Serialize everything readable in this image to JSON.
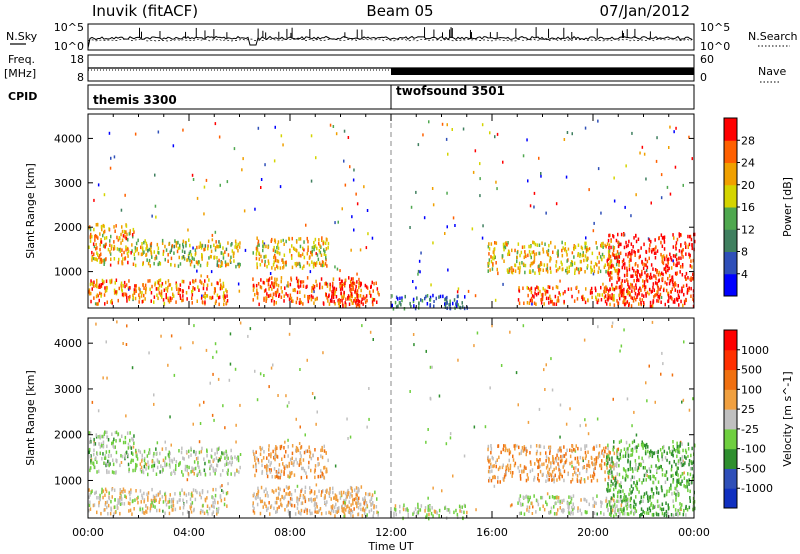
{
  "header": {
    "station": "Inuvik (fitACF)",
    "beam": "Beam 05",
    "date": "07/Jan/2012"
  },
  "left_labels": {
    "nsky": "N.Sky",
    "freq": "Freq.",
    "freq_unit": "[MHz]",
    "cpid": "CPID"
  },
  "right_labels": {
    "nsearch": "N.Search",
    "nave": "Nave"
  },
  "panel_ticks": {
    "nsky_left": [
      "10^5",
      "10^0"
    ],
    "nsky_right": [
      "10^5",
      "10^0"
    ],
    "freq_left": [
      "18",
      "8"
    ],
    "nave_right": [
      "60",
      "0"
    ]
  },
  "cpid_segments": [
    {
      "label": "themis 3300",
      "start_hour": 0
    },
    {
      "label": "twofsound 3501",
      "start_hour": 12
    }
  ],
  "colors": {
    "power_scale": [
      "#0000ff",
      "#2f4fb8",
      "#3f7f5f",
      "#4fa84f",
      "#d4d400",
      "#f0a000",
      "#ff6000",
      "#ff0000"
    ],
    "velocity_scale": [
      "#1030c0",
      "#2f4fb8",
      "#2f8f2f",
      "#6fcf3f",
      "#c0c0c0",
      "#f0a040",
      "#f07010",
      "#ff3000",
      "#ff0000"
    ]
  },
  "chart_data": [
    {
      "type": "heatmap",
      "name": "power",
      "xlabel": "",
      "ylabel": "Slant Range [km]",
      "xlim": [
        0,
        24
      ],
      "ylim": [
        180,
        4550
      ],
      "yticks": [
        1000,
        2000,
        3000,
        4000
      ],
      "colorbar": {
        "label": "Power [dB]",
        "ticks": [
          "4",
          "8",
          "12",
          "16",
          "20",
          "24",
          "28"
        ],
        "range": [
          0,
          32
        ]
      },
      "regions": [
        {
          "t0": 0.0,
          "t1": 1.8,
          "r0": 1200,
          "r1": 2100,
          "v": 22
        },
        {
          "t0": 1.8,
          "t1": 6.0,
          "r0": 1150,
          "r1": 1750,
          "v": 18
        },
        {
          "t0": 0.0,
          "t1": 5.5,
          "r0": 300,
          "r1": 850,
          "v": 24
        },
        {
          "t0": 6.5,
          "t1": 9.5,
          "r0": 1100,
          "r1": 1800,
          "v": 20
        },
        {
          "t0": 6.5,
          "t1": 10.8,
          "r0": 300,
          "r1": 900,
          "v": 27
        },
        {
          "t0": 9.5,
          "t1": 11.5,
          "r0": 250,
          "r1": 800,
          "v": 29
        },
        {
          "t0": 12.0,
          "t1": 15.0,
          "r0": 200,
          "r1": 500,
          "v": 8
        },
        {
          "t0": 15.8,
          "t1": 21.0,
          "r0": 1000,
          "r1": 1700,
          "v": 20
        },
        {
          "t0": 17.0,
          "t1": 21.5,
          "r0": 300,
          "r1": 700,
          "v": 26
        },
        {
          "t0": 20.5,
          "t1": 24.0,
          "r0": 250,
          "r1": 1900,
          "v": 30
        }
      ]
    },
    {
      "type": "heatmap",
      "name": "velocity",
      "xlabel": "Time UT",
      "ylabel": "Slant Range [km]",
      "xlim": [
        0,
        24
      ],
      "ylim": [
        180,
        4550
      ],
      "yticks": [
        1000,
        2000,
        3000,
        4000
      ],
      "xticks": [
        "00:00",
        "04:00",
        "08:00",
        "12:00",
        "16:00",
        "20:00",
        "00:00"
      ],
      "colorbar": {
        "label": "Velocity [m s^-1]",
        "ticks": [
          "1000",
          "500",
          "100",
          "25",
          "-25",
          "-100",
          "-500",
          "-1000"
        ],
        "range": [
          -1000,
          1000
        ]
      },
      "regions": [
        {
          "t0": 0.0,
          "t1": 1.8,
          "r0": 1200,
          "r1": 2100,
          "v": -150
        },
        {
          "t0": 1.8,
          "t1": 6.0,
          "r0": 1150,
          "r1": 1750,
          "v": -100
        },
        {
          "t0": 0.0,
          "t1": 5.5,
          "r0": 300,
          "r1": 850,
          "v": 50
        },
        {
          "t0": 6.5,
          "t1": 9.5,
          "r0": 1100,
          "r1": 1800,
          "v": 200
        },
        {
          "t0": 6.5,
          "t1": 10.8,
          "r0": 300,
          "r1": 900,
          "v": 150
        },
        {
          "t0": 9.5,
          "t1": 11.5,
          "r0": 250,
          "r1": 800,
          "v": 100
        },
        {
          "t0": 12.0,
          "t1": 15.0,
          "r0": 200,
          "r1": 500,
          "v": -60
        },
        {
          "t0": 15.8,
          "t1": 21.0,
          "r0": 1000,
          "r1": 1800,
          "v": 250
        },
        {
          "t0": 17.0,
          "t1": 21.5,
          "r0": 300,
          "r1": 700,
          "v": -60
        },
        {
          "t0": 20.5,
          "t1": 24.0,
          "r0": 250,
          "r1": 1900,
          "v": -300
        }
      ]
    }
  ]
}
